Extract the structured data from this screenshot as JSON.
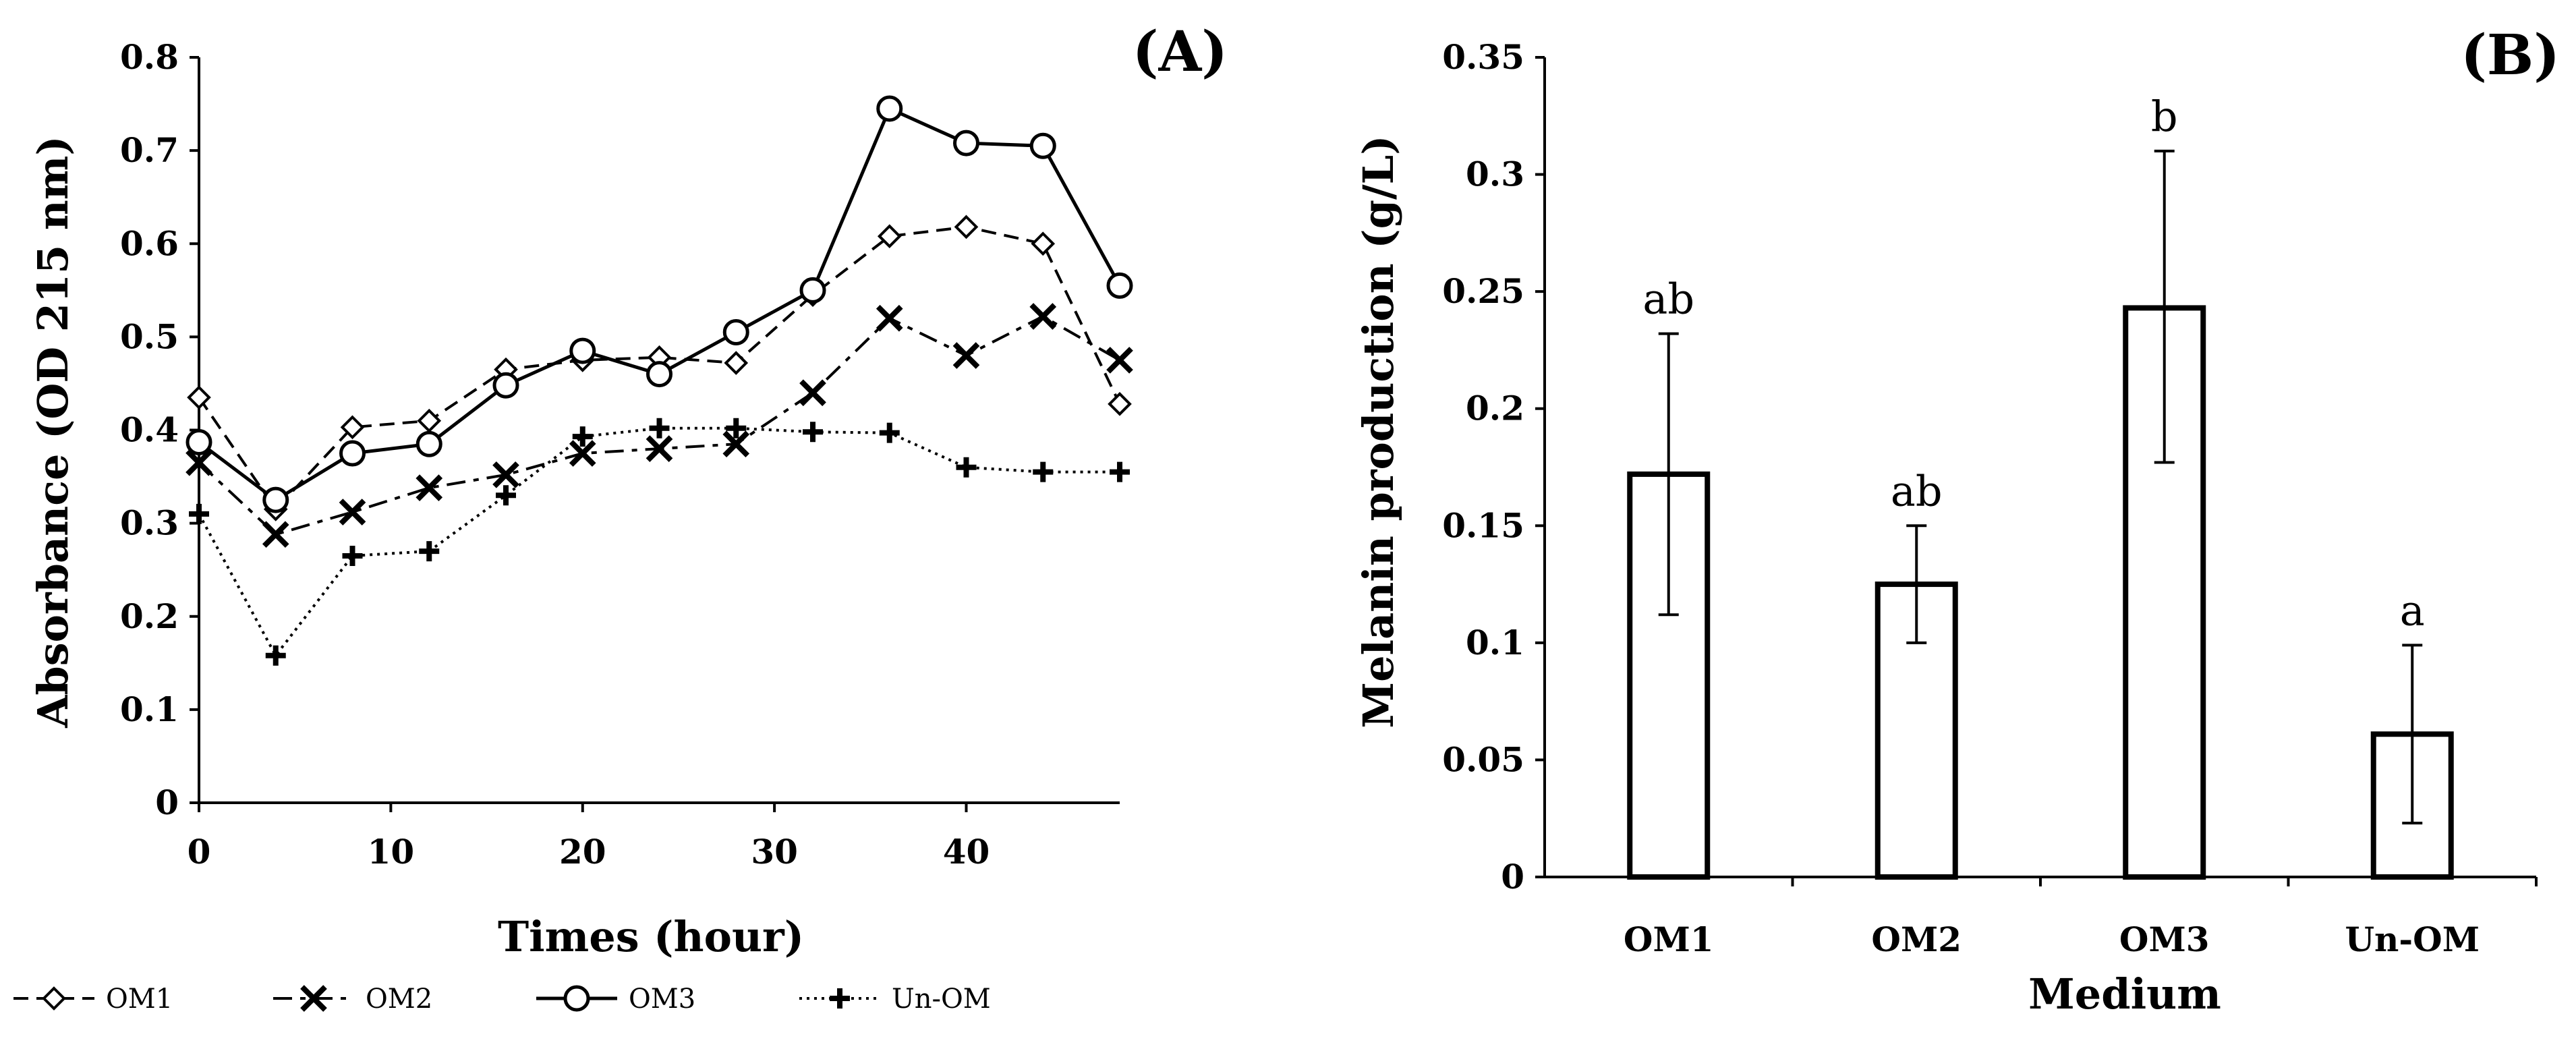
{
  "chart_data": [
    {
      "type": "line",
      "panel_label": "(A)",
      "xlabel": "Times (hour)",
      "ylabel": "Absorbance (OD 215 nm)",
      "xlim": [
        0,
        48
      ],
      "ylim": [
        0,
        0.8
      ],
      "xticks": [
        0,
        10,
        20,
        30,
        40
      ],
      "xtick_labels": [
        "0",
        "10",
        "20",
        "30",
        "40"
      ],
      "yticks": [
        0,
        0.1,
        0.2,
        0.3,
        0.4,
        0.5,
        0.6,
        0.7,
        0.8
      ],
      "ytick_labels": [
        "0",
        "0.1",
        "0.2",
        "0.3",
        "0.4",
        "0.5",
        "0.6",
        "0.7",
        "0.8"
      ],
      "grid": false,
      "legend_position": "bottom",
      "x": [
        0,
        4,
        8,
        12,
        16,
        20,
        24,
        28,
        32,
        36,
        40,
        44,
        48
      ],
      "series": [
        {
          "name": "OM1",
          "marker": "diamond",
          "line": "dashed",
          "values": [
            0.435,
            0.315,
            0.403,
            0.41,
            0.465,
            0.475,
            0.478,
            0.472,
            0.545,
            0.608,
            0.618,
            0.6,
            0.428
          ]
        },
        {
          "name": "OM2",
          "marker": "x",
          "line": "dashdot",
          "values": [
            0.365,
            0.288,
            0.312,
            0.338,
            0.352,
            0.375,
            0.38,
            0.385,
            0.44,
            0.52,
            0.48,
            0.522,
            0.475
          ]
        },
        {
          "name": "OM3",
          "marker": "circle",
          "line": "solid",
          "values": [
            0.387,
            0.325,
            0.375,
            0.385,
            0.448,
            0.485,
            0.46,
            0.505,
            0.55,
            0.745,
            0.708,
            0.705,
            0.555
          ]
        },
        {
          "name": "Un-OM",
          "marker": "plus",
          "line": "dotted",
          "values": [
            0.31,
            0.158,
            0.265,
            0.27,
            0.33,
            0.393,
            0.402,
            0.402,
            0.398,
            0.397,
            0.36,
            0.355,
            0.355
          ]
        }
      ]
    },
    {
      "type": "bar",
      "panel_label": "(B)",
      "xlabel": "Medium",
      "ylabel": "Melanin production (g/L)",
      "ylim": [
        0,
        0.35
      ],
      "yticks": [
        0,
        0.05,
        0.1,
        0.15,
        0.2,
        0.25,
        0.3,
        0.35
      ],
      "ytick_labels": [
        "0",
        "0.05",
        "0.1",
        "0.15",
        "0.2",
        "0.25",
        "0.3",
        "0.35"
      ],
      "grid": false,
      "categories": [
        "OM1",
        "OM2",
        "OM3",
        "Un-OM"
      ],
      "values": [
        0.172,
        0.125,
        0.243,
        0.061
      ],
      "error_low": [
        0.112,
        0.1,
        0.177,
        0.023
      ],
      "error_high": [
        0.232,
        0.15,
        0.31,
        0.099
      ],
      "annotations": [
        "ab",
        "ab",
        "b",
        "a"
      ]
    }
  ],
  "colors": {
    "ink": "#000000",
    "bar_fill": "#ffffff"
  }
}
